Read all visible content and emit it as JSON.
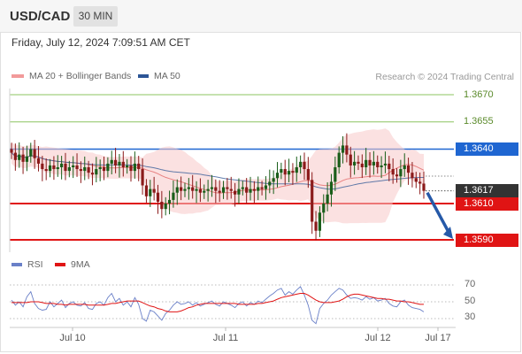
{
  "header": {
    "symbol": "USD/CAD",
    "interval": "30 MIN"
  },
  "timestamp": "Friday, July 12, 2024 7:09:51 AM CET",
  "legend": {
    "ma20_label": "MA 20 + Bollinger Bands",
    "ma50_label": "MA 50",
    "credit": "Research © 2024 Trading Central",
    "rsi_label": "RSI",
    "ma9_label": "9MA"
  },
  "colors": {
    "bullish": "#1a5e1a",
    "bearish": "#8b1a1a",
    "bollinger": "#f8c8c8",
    "ma20": "#e88080",
    "ma50": "#3a5f9a",
    "support": "#e01414",
    "pivot": "#1f66d1",
    "target": "#8cc460",
    "arrow": "#2659a8",
    "rsi": "#6a80c8",
    "rsi_ma": "#e01414"
  },
  "chart_data": [
    {
      "type": "candlestick",
      "title": "USD/CAD",
      "interval": "30 MIN",
      "ylim": [
        1.3582,
        1.368
      ],
      "x_ticks": [
        "Jul 10",
        "Jul 11",
        "Jul 12",
        "Jul 17"
      ],
      "levels": [
        {
          "value": 1.367,
          "label": "1.3670",
          "kind": "target"
        },
        {
          "value": 1.3655,
          "label": "1.3655",
          "kind": "target"
        },
        {
          "value": 1.364,
          "label": "1.3640",
          "kind": "pivot"
        },
        {
          "value": 1.3617,
          "label": "1.3617",
          "kind": "last"
        },
        {
          "value": 1.361,
          "label": "1.3610",
          "kind": "support"
        },
        {
          "value": 1.359,
          "label": "1.3590",
          "kind": "support"
        }
      ],
      "forecast_arrow": {
        "from": 1.3617,
        "to": 1.359,
        "direction": "down"
      },
      "close": [
        1.3638,
        1.3634,
        1.3637,
        1.3633,
        1.3636,
        1.364,
        1.3635,
        1.3632,
        1.3629,
        1.3628,
        1.3631,
        1.3629,
        1.363,
        1.3632,
        1.3628,
        1.363,
        1.3631,
        1.3629,
        1.3628,
        1.363,
        1.3627,
        1.3626,
        1.3629,
        1.363,
        1.3628,
        1.3632,
        1.3634,
        1.3631,
        1.3633,
        1.363,
        1.3631,
        1.3628,
        1.3632,
        1.3629,
        1.362,
        1.3614,
        1.3618,
        1.3616,
        1.3611,
        1.3607,
        1.361,
        1.3612,
        1.3616,
        1.3619,
        1.3617,
        1.3618,
        1.3619,
        1.3617,
        1.3618,
        1.3616,
        1.3617,
        1.3618,
        1.3619,
        1.3617,
        1.3616,
        1.3619,
        1.3618,
        1.3617,
        1.3615,
        1.3618,
        1.3619,
        1.3616,
        1.3618,
        1.3617,
        1.3619,
        1.3618,
        1.362,
        1.3622,
        1.3624,
        1.3627,
        1.3629,
        1.3626,
        1.3628,
        1.3627,
        1.363,
        1.3633,
        1.3629,
        1.3623,
        1.36,
        1.3595,
        1.3605,
        1.361,
        1.3615,
        1.3622,
        1.363,
        1.3638,
        1.3642,
        1.3637,
        1.3631,
        1.3633,
        1.3632,
        1.363,
        1.3634,
        1.3631,
        1.3633,
        1.363,
        1.3631,
        1.3632,
        1.3629,
        1.3626,
        1.3625,
        1.3629,
        1.3631,
        1.3627,
        1.3624,
        1.3622,
        1.3621,
        1.3617
      ],
      "series": [
        {
          "name": "MA 20 + Bollinger Bands",
          "values": []
        },
        {
          "name": "MA 50",
          "values": []
        }
      ]
    },
    {
      "type": "line",
      "title": "RSI",
      "y_ticks": [
        70,
        50,
        30
      ],
      "ylim": [
        20,
        80
      ],
      "series": [
        {
          "name": "RSI",
          "values": [
            52,
            46,
            50,
            44,
            56,
            62,
            48,
            42,
            40,
            41,
            50,
            44,
            48,
            52,
            43,
            48,
            50,
            46,
            45,
            49,
            42,
            41,
            48,
            50,
            46,
            55,
            60,
            50,
            54,
            46,
            50,
            44,
            55,
            47,
            30,
            27,
            40,
            38,
            33,
            28,
            36,
            40,
            46,
            50,
            47,
            48,
            50,
            46,
            49,
            45,
            47,
            49,
            51,
            47,
            45,
            50,
            48,
            46,
            43,
            48,
            50,
            45,
            49,
            47,
            51,
            49,
            53,
            57,
            60,
            64,
            66,
            58,
            62,
            59,
            64,
            68,
            58,
            46,
            28,
            24,
            42,
            48,
            52,
            58,
            62,
            66,
            64,
            58,
            54,
            55,
            54,
            52,
            56,
            53,
            55,
            51,
            52,
            54,
            48,
            45,
            44,
            50,
            52,
            46,
            43,
            42,
            41,
            38
          ]
        },
        {
          "name": "9MA",
          "values": [
            49,
            49,
            49,
            49,
            49,
            50,
            50,
            50,
            49,
            48,
            48,
            48,
            47,
            47,
            46,
            47,
            47,
            47,
            47,
            47,
            46,
            46,
            46,
            46,
            46,
            47,
            48,
            48,
            49,
            50,
            51,
            51,
            51,
            51,
            49,
            47,
            45,
            44,
            42,
            41,
            39,
            38,
            38,
            38,
            39,
            41,
            43,
            44,
            46,
            47,
            48,
            48,
            48,
            48,
            48,
            48,
            48,
            48,
            48,
            47,
            47,
            47,
            47,
            47,
            48,
            48,
            49,
            50,
            51,
            53,
            55,
            56,
            57,
            58,
            59,
            60,
            60,
            58,
            55,
            52,
            50,
            49,
            49,
            49,
            50,
            51,
            53,
            56,
            58,
            59,
            59,
            58,
            57,
            56,
            55,
            54,
            54,
            53,
            53,
            52,
            51,
            51,
            50,
            50,
            49,
            48,
            47,
            47
          ]
        }
      ]
    }
  ]
}
